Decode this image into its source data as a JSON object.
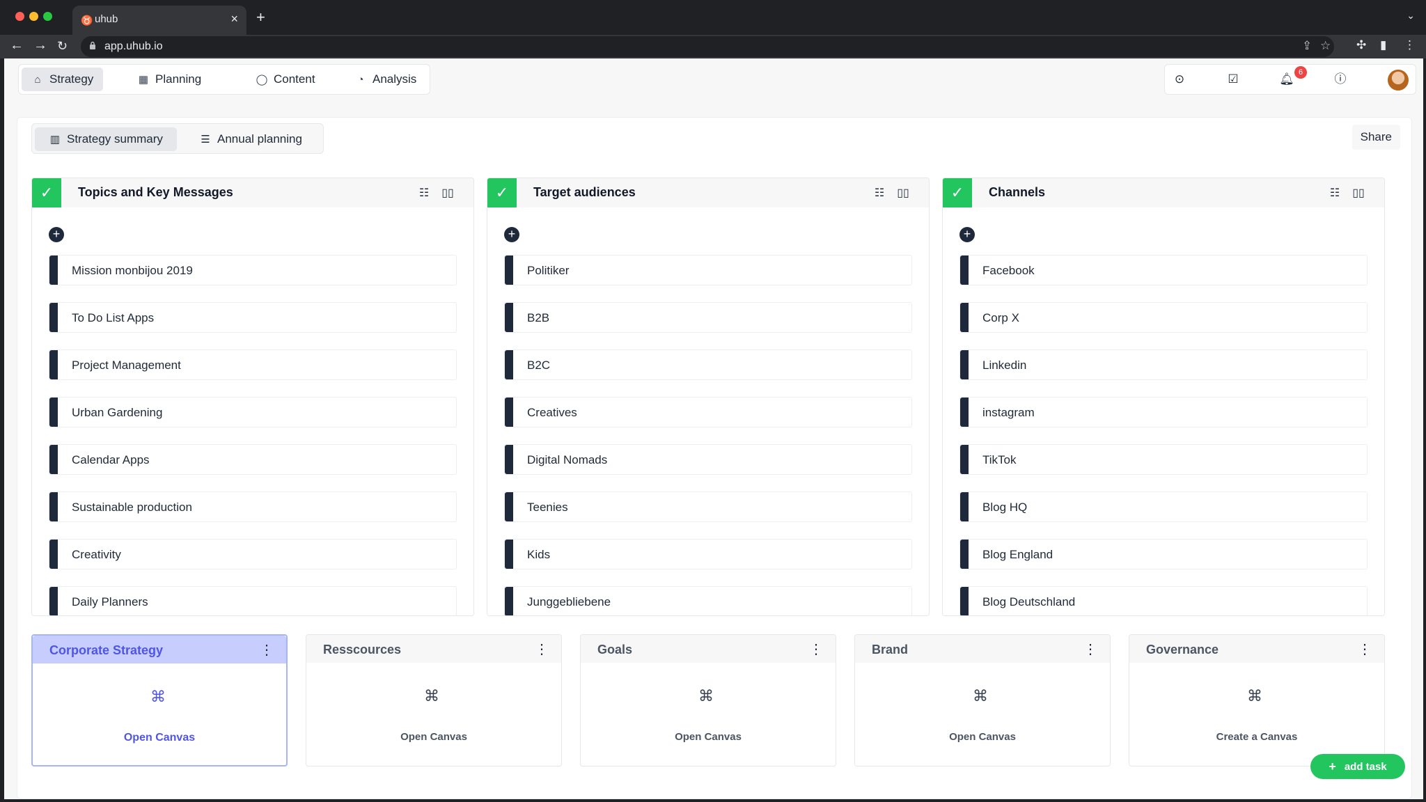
{
  "browser": {
    "tab_title": "uhub",
    "url": "app.uhub.io"
  },
  "nav": {
    "items": [
      {
        "label": "Strategy",
        "icon": "strategy-icon"
      },
      {
        "label": "Planning",
        "icon": "calendar-icon"
      },
      {
        "label": "Content",
        "icon": "chat-bubble-icon"
      },
      {
        "label": "Analysis",
        "icon": "pie-chart-icon"
      }
    ],
    "active": "Strategy"
  },
  "utility": {
    "notification_count": "6"
  },
  "subtabs": {
    "items": [
      {
        "label": "Strategy summary"
      },
      {
        "label": "Annual planning"
      }
    ],
    "active": "Strategy summary",
    "share_label": "Share"
  },
  "columns": [
    {
      "title": "Topics and Key Messages",
      "items": [
        "Mission monbijou 2019",
        "To Do List Apps",
        "Project Management",
        "Urban Gardening",
        "Calendar Apps",
        "Sustainable production",
        "Creativity",
        "Daily Planners"
      ]
    },
    {
      "title": "Target audiences",
      "items": [
        "Politiker",
        "B2B",
        "B2C",
        "Creatives",
        "Digital Nomads",
        "Teenies",
        "Kids",
        "Junggebliebene"
      ]
    },
    {
      "title": "Channels",
      "items": [
        "Facebook",
        "Corp X",
        "Linkedin",
        "instagram",
        "TikTok",
        "Blog HQ",
        "Blog England",
        "Blog Deutschland"
      ]
    }
  ],
  "cards": [
    {
      "title": "Corporate Strategy",
      "link": "Open Canvas",
      "active": true
    },
    {
      "title": "Resscources",
      "link": "Open Canvas"
    },
    {
      "title": "Goals",
      "link": "Open Canvas"
    },
    {
      "title": "Brand",
      "link": "Open Canvas"
    },
    {
      "title": "Governance",
      "link": "Create a Canvas"
    }
  ],
  "add_task_label": "add task",
  "colors": {
    "accent_green": "#22c55e",
    "accent_indigo": "#4f55e6",
    "item_bar": "#1e293b",
    "badge_red": "#ef4444"
  }
}
